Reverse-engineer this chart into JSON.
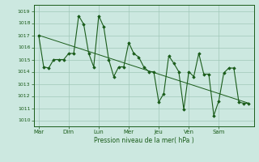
{
  "background_color": "#cce8e0",
  "grid_color": "#a0c8b8",
  "line_color": "#1a5c1a",
  "marker_color": "#1a5c1a",
  "xlabel": "Pression niveau de la mer( hPa )",
  "ylim_min": 1009.5,
  "ylim_max": 1019.5,
  "yticks": [
    1010,
    1011,
    1012,
    1013,
    1014,
    1015,
    1016,
    1017,
    1018,
    1019
  ],
  "xtick_labels": [
    "Mar",
    "Dim",
    "Lun",
    "Mer",
    "Jeu",
    "Ven",
    "Sam"
  ],
  "xtick_positions": [
    0,
    6,
    12,
    18,
    24,
    30,
    36
  ],
  "xlim_min": -1,
  "xlim_max": 43,
  "series1": {
    "x": [
      0,
      1,
      2,
      3,
      4,
      5,
      6,
      7,
      8,
      9,
      10,
      11,
      12,
      13,
      14,
      15,
      16,
      17,
      18,
      19,
      20,
      21,
      22,
      23,
      24,
      25,
      26,
      27,
      28,
      29,
      30,
      31,
      32,
      33,
      34,
      35,
      36,
      37,
      38,
      39,
      40,
      41,
      42
    ],
    "y": [
      1017.0,
      1014.4,
      1014.3,
      1015.0,
      1015.0,
      1015.0,
      1015.5,
      1015.5,
      1018.6,
      1017.9,
      1015.5,
      1014.4,
      1018.6,
      1017.7,
      1015.0,
      1013.6,
      1014.4,
      1014.4,
      1016.4,
      1015.5,
      1015.2,
      1014.4,
      1014.0,
      1014.0,
      1011.5,
      1012.2,
      1015.3,
      1014.7,
      1014.0,
      1010.9,
      1014.0,
      1013.6,
      1015.5,
      1013.8,
      1013.8,
      1010.4,
      1011.6,
      1013.9,
      1014.3,
      1014.3,
      1011.5,
      1011.4,
      1011.4
    ]
  },
  "trend_line": {
    "x": [
      0,
      42
    ],
    "y": [
      1017.0,
      1011.4
    ]
  },
  "figwidth": 3.2,
  "figheight": 2.0,
  "dpi": 100
}
